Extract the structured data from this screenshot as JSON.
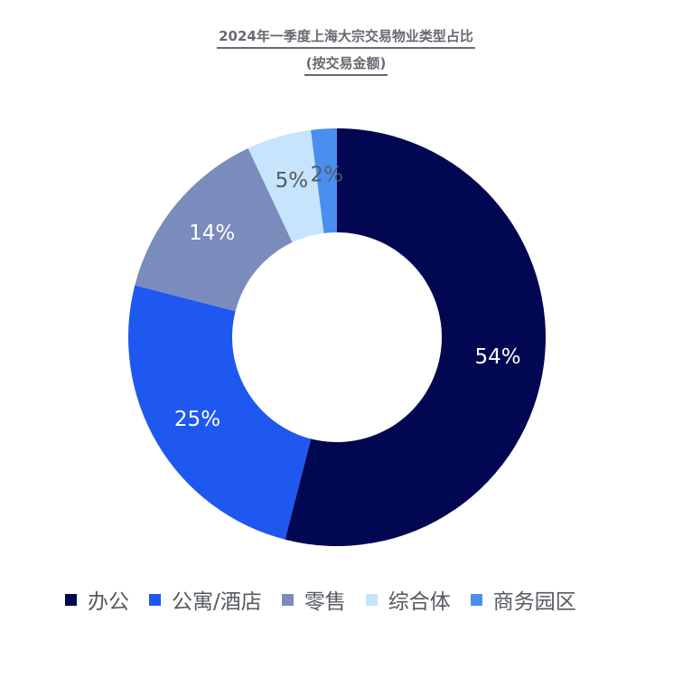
{
  "chart_data": {
    "type": "pie",
    "variant": "donut",
    "title": "2024年一季度上海大宗交易物业类型占比",
    "subtitle": "(按交易金额)",
    "categories": [
      "办公",
      "公寓/酒店",
      "零售",
      "综合体",
      "商务园区"
    ],
    "values": [
      54,
      25,
      14,
      5,
      2
    ],
    "value_labels": [
      "54%",
      "25%",
      "14%",
      "5%",
      "2%"
    ],
    "colors": [
      "#010751",
      "#1e58f0",
      "#7a8cbc",
      "#c6e4fc",
      "#4a8ff0"
    ],
    "label_colors": [
      "#ffffff",
      "#ffffff",
      "#ffffff",
      "#555a60",
      "#555a60"
    ],
    "legend_position": "bottom"
  }
}
